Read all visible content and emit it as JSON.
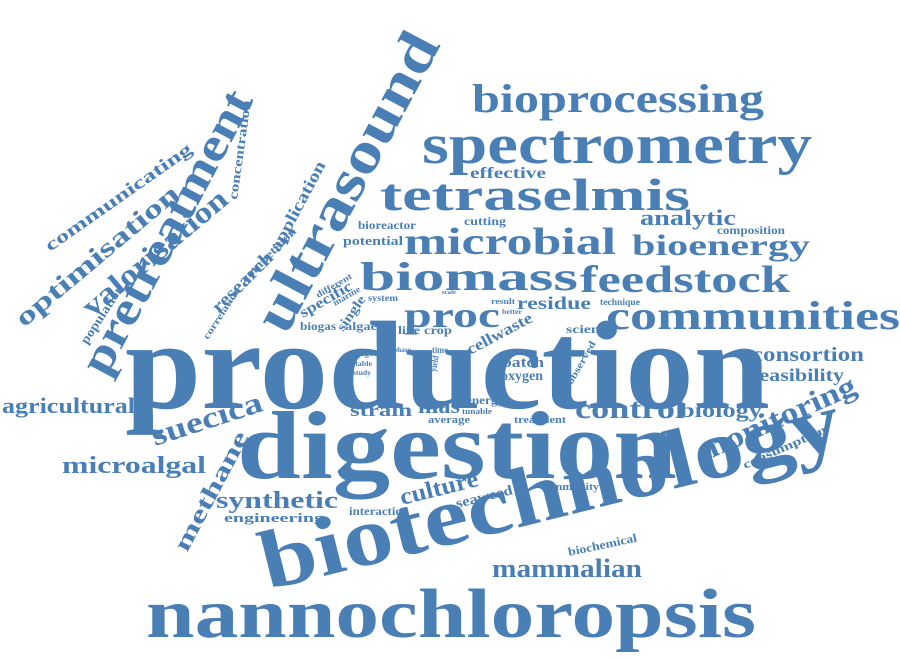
{
  "color": "#4a7fb5",
  "words": [
    "production",
    "digestion",
    "biotechnology",
    "nannochloropsis",
    "ultrasound",
    "pretreatment",
    "spectrometry",
    "bioprocessing",
    "tetraselmis",
    "microbial",
    "biomass",
    "feedstock",
    "communities",
    "bioenergy",
    "analytic",
    "composition",
    "effective",
    "cutting",
    "bioreactor",
    "potential",
    "valorisation",
    "optimisation",
    "communicating",
    "concentration",
    "application",
    "competition",
    "research",
    "population",
    "correlation",
    "different",
    "marine",
    "specific",
    "single",
    "system",
    "biogas",
    "algae",
    "proc",
    "residue",
    "result",
    "better",
    "technique",
    "scale",
    "cellwaste",
    "line",
    "crop",
    "science",
    "consortion",
    "feasibility",
    "edge",
    "stable",
    "study",
    "phase",
    "time",
    "yield",
    "batch",
    "oxygen",
    "observed",
    "agricultural",
    "suecica",
    "strain",
    "mas",
    "energy",
    "tunable",
    "average",
    "treatment",
    "control",
    "biology",
    "monitoring",
    "consumption",
    "microalgal",
    "methane",
    "synthetic",
    "engineering",
    "culture",
    "seaweed",
    "interaction",
    "community",
    "mammalian",
    "biochemical",
    "stream",
    "scale"
  ]
}
